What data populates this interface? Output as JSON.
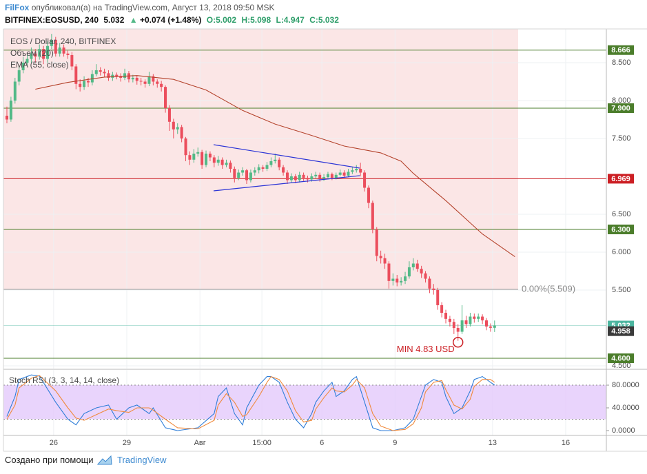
{
  "header": {
    "author": "FilFox",
    "published": "опубликовал(а) на TradingView.com, Август 13, 2018 09:50 MSK",
    "symbol": "BITFINEX:EOSUSD, 240",
    "price": "5.032",
    "arrow": "▲",
    "change": "+0.074 (+1.48%)",
    "open": "O:5.002",
    "high": "H:5.098",
    "low": "L:4.947",
    "close": "C:5.032"
  },
  "footer": {
    "text": "Создано при помощи",
    "brand": "TradingView"
  },
  "chart_data": [
    {
      "type": "candlestick",
      "title": "EOS / Dollar, 240, BITFINEX",
      "indicator_label": "Объем (20)",
      "up_color": "#53b987",
      "down_color": "#eb4d5c",
      "open": [
        7.8,
        7.75,
        8.0,
        8.25,
        8.4,
        8.5,
        8.55,
        8.62,
        8.58,
        8.68,
        8.55,
        8.72,
        8.8,
        8.62,
        8.7,
        8.62,
        8.6,
        8.45,
        8.22,
        8.18,
        8.26,
        8.24,
        8.35,
        8.4,
        8.38,
        8.36,
        8.3,
        8.34,
        8.32,
        8.3,
        8.36,
        8.28,
        8.3,
        8.26,
        8.25,
        8.22,
        8.32,
        8.25,
        8.22,
        8.18,
        7.9,
        7.72,
        7.62,
        7.65,
        7.5,
        7.28,
        7.22,
        7.3,
        7.32,
        7.15,
        7.3,
        7.25,
        7.18,
        7.22,
        7.15,
        7.18,
        7.1,
        6.98,
        7.05,
        7.08,
        6.95,
        7.05,
        7.08,
        7.12,
        7.1,
        7.15,
        7.2,
        7.22,
        7.12,
        7.05,
        6.95,
        7.0,
        6.95,
        7.02,
        6.98,
        6.96,
        7.0,
        7.02,
        6.97,
        6.99,
        7.03,
        6.98,
        7.02,
        7.05,
        7.01,
        7.06,
        7.08,
        7.1,
        7.05,
        6.85,
        6.65,
        6.3,
        5.95,
        5.92,
        5.85,
        5.62,
        5.65,
        5.6,
        5.62,
        5.68,
        5.8,
        5.85,
        5.78,
        5.72,
        5.65,
        5.52,
        5.5,
        5.3,
        5.2,
        5.12,
        5.08,
        5.0,
        4.95,
        5.1,
        5.05,
        5.15,
        5.12,
        5.15,
        5.1,
        5.02,
        5.002
      ],
      "high": [
        7.92,
        8.05,
        8.3,
        8.46,
        8.58,
        8.62,
        8.7,
        8.68,
        8.74,
        8.72,
        8.78,
        8.88,
        8.84,
        8.76,
        8.74,
        8.66,
        8.64,
        8.48,
        8.28,
        8.32,
        8.3,
        8.4,
        8.48,
        8.44,
        8.42,
        8.4,
        8.38,
        8.37,
        8.36,
        8.42,
        8.39,
        8.34,
        8.33,
        8.3,
        8.28,
        8.38,
        8.35,
        8.28,
        8.26,
        8.2,
        7.94,
        7.76,
        7.7,
        7.68,
        7.52,
        7.33,
        7.36,
        7.38,
        7.35,
        7.34,
        7.33,
        7.28,
        7.27,
        7.25,
        7.22,
        7.21,
        7.13,
        7.09,
        7.12,
        7.1,
        7.09,
        7.12,
        7.16,
        7.15,
        7.19,
        7.25,
        7.3,
        7.25,
        7.15,
        7.08,
        7.04,
        7.03,
        7.06,
        7.05,
        7.01,
        7.04,
        7.06,
        7.05,
        7.03,
        7.06,
        7.05,
        7.05,
        7.09,
        7.08,
        7.1,
        7.12,
        7.15,
        7.18,
        7.08,
        6.88,
        6.68,
        6.33,
        6.02,
        5.98,
        5.88,
        5.72,
        5.7,
        5.67,
        5.74,
        5.88,
        5.92,
        5.9,
        5.82,
        5.75,
        5.68,
        5.58,
        5.53,
        5.34,
        5.24,
        5.16,
        5.12,
        5.05,
        5.3,
        5.16,
        5.2,
        5.19,
        5.19,
        5.18,
        5.13,
        5.06,
        5.098
      ],
      "low": [
        7.7,
        7.72,
        7.96,
        8.2,
        8.36,
        8.45,
        8.5,
        8.5,
        8.54,
        8.48,
        8.5,
        8.68,
        8.58,
        8.58,
        8.58,
        8.55,
        8.4,
        8.15,
        8.12,
        8.14,
        8.18,
        8.2,
        8.32,
        8.33,
        8.31,
        8.26,
        8.26,
        8.28,
        8.25,
        8.27,
        8.24,
        8.24,
        8.21,
        8.2,
        8.17,
        8.19,
        8.2,
        8.17,
        8.12,
        7.84,
        7.6,
        7.5,
        7.56,
        7.45,
        7.2,
        7.15,
        7.18,
        7.26,
        7.1,
        7.12,
        7.2,
        7.12,
        7.14,
        7.1,
        7.12,
        7.05,
        6.92,
        6.95,
        7.01,
        6.9,
        6.92,
        7.01,
        7.04,
        7.06,
        7.07,
        7.12,
        7.17,
        7.08,
        7.01,
        6.9,
        6.92,
        6.91,
        6.92,
        6.94,
        6.92,
        6.93,
        6.97,
        6.93,
        6.94,
        6.96,
        6.95,
        6.96,
        7.0,
        6.98,
        6.99,
        7.03,
        7.05,
        7.0,
        6.8,
        6.58,
        6.25,
        5.88,
        5.85,
        5.78,
        5.52,
        5.56,
        5.55,
        5.56,
        5.58,
        5.65,
        5.76,
        5.74,
        5.66,
        5.6,
        5.46,
        5.44,
        5.24,
        5.14,
        5.06,
        5.02,
        4.92,
        4.83,
        4.92,
        5.0,
        5.02,
        5.07,
        5.08,
        5.05,
        4.97,
        4.95,
        4.947
      ],
      "close": [
        7.75,
        8.0,
        8.25,
        8.4,
        8.5,
        8.55,
        8.62,
        8.58,
        8.68,
        8.55,
        8.72,
        8.8,
        8.62,
        8.7,
        8.62,
        8.6,
        8.45,
        8.22,
        8.18,
        8.26,
        8.24,
        8.35,
        8.4,
        8.38,
        8.36,
        8.3,
        8.34,
        8.32,
        8.3,
        8.36,
        8.28,
        8.3,
        8.26,
        8.25,
        8.22,
        8.32,
        8.25,
        8.22,
        8.18,
        7.9,
        7.72,
        7.62,
        7.65,
        7.5,
        7.28,
        7.22,
        7.3,
        7.32,
        7.15,
        7.3,
        7.25,
        7.18,
        7.22,
        7.15,
        7.18,
        7.1,
        6.98,
        7.05,
        7.08,
        6.95,
        7.05,
        7.08,
        7.12,
        7.1,
        7.15,
        7.2,
        7.22,
        7.12,
        7.05,
        6.95,
        7.0,
        6.95,
        7.02,
        6.98,
        6.96,
        7.0,
        7.02,
        6.97,
        6.99,
        7.03,
        6.98,
        7.02,
        7.05,
        7.01,
        7.06,
        7.08,
        7.1,
        7.05,
        6.85,
        6.65,
        6.3,
        5.95,
        5.92,
        5.85,
        5.62,
        5.65,
        5.6,
        5.62,
        5.68,
        5.8,
        5.85,
        5.78,
        5.72,
        5.65,
        5.52,
        5.5,
        5.3,
        5.2,
        5.12,
        5.08,
        5.0,
        4.95,
        5.1,
        5.05,
        5.15,
        5.12,
        5.15,
        5.1,
        5.02,
        5.002,
        5.032
      ],
      "series": [
        {
          "name": "EMA (55, close)",
          "color": "#b4432c",
          "x": [
            7,
            15,
            24,
            32,
            41,
            49,
            58,
            66,
            75,
            83,
            92,
            97,
            100,
            108,
            117,
            125
          ],
          "values": [
            8.15,
            8.24,
            8.31,
            8.33,
            8.28,
            8.14,
            7.87,
            7.69,
            7.54,
            7.4,
            7.31,
            7.2,
            7.04,
            6.68,
            6.24,
            5.94
          ]
        }
      ],
      "levels": [
        {
          "value": 8.666,
          "label": "8.666",
          "color": "#4b7d2b"
        },
        {
          "value": 7.9,
          "label": "7.900",
          "color": "#4b7d2b"
        },
        {
          "value": 6.969,
          "label": "6.969",
          "color": "#cc1f24"
        },
        {
          "value": 6.3,
          "label": "6.300",
          "color": "#4b7d2b"
        },
        {
          "value": 4.6,
          "label": "4.600",
          "color": "#4b7d2b"
        }
      ],
      "fib": {
        "value": 5.509,
        "label": "0.00%(5.509)"
      },
      "last_price": {
        "value": 5.032,
        "label": "5.032",
        "color": "#4cb6a0"
      },
      "marker": {
        "value": 4.958,
        "label": "4.958",
        "color": "#3a3a3a"
      },
      "annotation": {
        "text": "MIN 4.83 USD",
        "value": 4.83,
        "x": 111,
        "color": "#cc1f24"
      },
      "xlim": [
        -0.85,
        147.5
      ],
      "xticks": [
        {
          "value": 11.5,
          "label": "26"
        },
        {
          "value": 29.5,
          "label": "29"
        },
        {
          "value": 47.5,
          "label": "Авг"
        },
        {
          "value": 62.75,
          "label": "15:00"
        },
        {
          "value": 77.5,
          "label": "6"
        },
        {
          "value": 95.5,
          "label": "9"
        },
        {
          "value": 119.5,
          "label": "13"
        },
        {
          "value": 137.5,
          "label": "16"
        }
      ],
      "ylim": [
        4.464,
        8.945
      ],
      "yticks": [
        {
          "value": 8.5,
          "label": "8.500"
        },
        {
          "value": 8,
          "label": "8.000"
        },
        {
          "value": 7.5,
          "label": "7.500"
        },
        {
          "value": 6.5,
          "label": "6.500"
        },
        {
          "value": 6,
          "label": "6.000"
        },
        {
          "value": 5.5,
          "label": "5.500"
        },
        {
          "value": 4.5,
          "label": "4.500"
        }
      ],
      "grid": true
    },
    {
      "type": "line",
      "title": "Stoch RSI (3, 3, 14, 14, close)",
      "series": [
        {
          "color": "#2f7ed8",
          "x": [
            0,
            2,
            3,
            6,
            8,
            12,
            15,
            17,
            19,
            22,
            25,
            27,
            30,
            32,
            35,
            36,
            39,
            42,
            47,
            51,
            52,
            54,
            56,
            58,
            59,
            62,
            64,
            65,
            67,
            69,
            71,
            73,
            75,
            76,
            78,
            80,
            81,
            83,
            85,
            86,
            88,
            90,
            92,
            95,
            98,
            100,
            102,
            103,
            105,
            107,
            108,
            110,
            112,
            114,
            115,
            117,
            119,
            120
          ],
          "values": [
            25,
            60,
            90,
            98,
            96,
            50,
            20,
            10,
            30,
            40,
            45,
            20,
            40,
            45,
            30,
            40,
            5,
            0,
            5,
            30,
            60,
            75,
            30,
            10,
            40,
            80,
            95,
            95,
            85,
            50,
            20,
            5,
            30,
            50,
            70,
            85,
            60,
            70,
            90,
            95,
            50,
            5,
            0,
            0,
            5,
            20,
            60,
            80,
            90,
            85,
            60,
            30,
            40,
            70,
            90,
            95,
            85,
            80
          ]
        },
        {
          "color": "#f08a3c",
          "x": [
            0,
            2,
            3,
            6,
            8,
            12,
            15,
            17,
            19,
            22,
            25,
            27,
            30,
            32,
            35,
            36,
            39,
            42,
            47,
            51,
            52,
            54,
            56,
            58,
            59,
            62,
            64,
            65,
            67,
            69,
            71,
            73,
            75,
            76,
            78,
            80,
            81,
            83,
            85,
            86,
            88,
            90,
            92,
            95,
            98,
            100,
            102,
            103,
            105,
            107,
            108,
            110,
            112,
            114,
            115,
            117,
            119,
            120
          ],
          "values": [
            20,
            45,
            75,
            92,
            97,
            70,
            40,
            22,
            18,
            28,
            38,
            35,
            32,
            40,
            40,
            36,
            20,
            5,
            3,
            18,
            45,
            65,
            50,
            25,
            28,
            60,
            85,
            95,
            90,
            70,
            35,
            15,
            18,
            38,
            58,
            75,
            70,
            68,
            80,
            90,
            75,
            30,
            8,
            0,
            2,
            12,
            40,
            68,
            85,
            88,
            72,
            45,
            38,
            55,
            78,
            90,
            90,
            85
          ]
        }
      ],
      "band": [
        20,
        80
      ],
      "band_color": "#e3c9fb",
      "ylim": [
        -8.5,
        106.7
      ],
      "yticks": [
        {
          "value": 80,
          "label": "80.0000"
        },
        {
          "value": 40,
          "label": "40.0000"
        },
        {
          "value": 0,
          "label": "0.0000"
        }
      ]
    }
  ]
}
